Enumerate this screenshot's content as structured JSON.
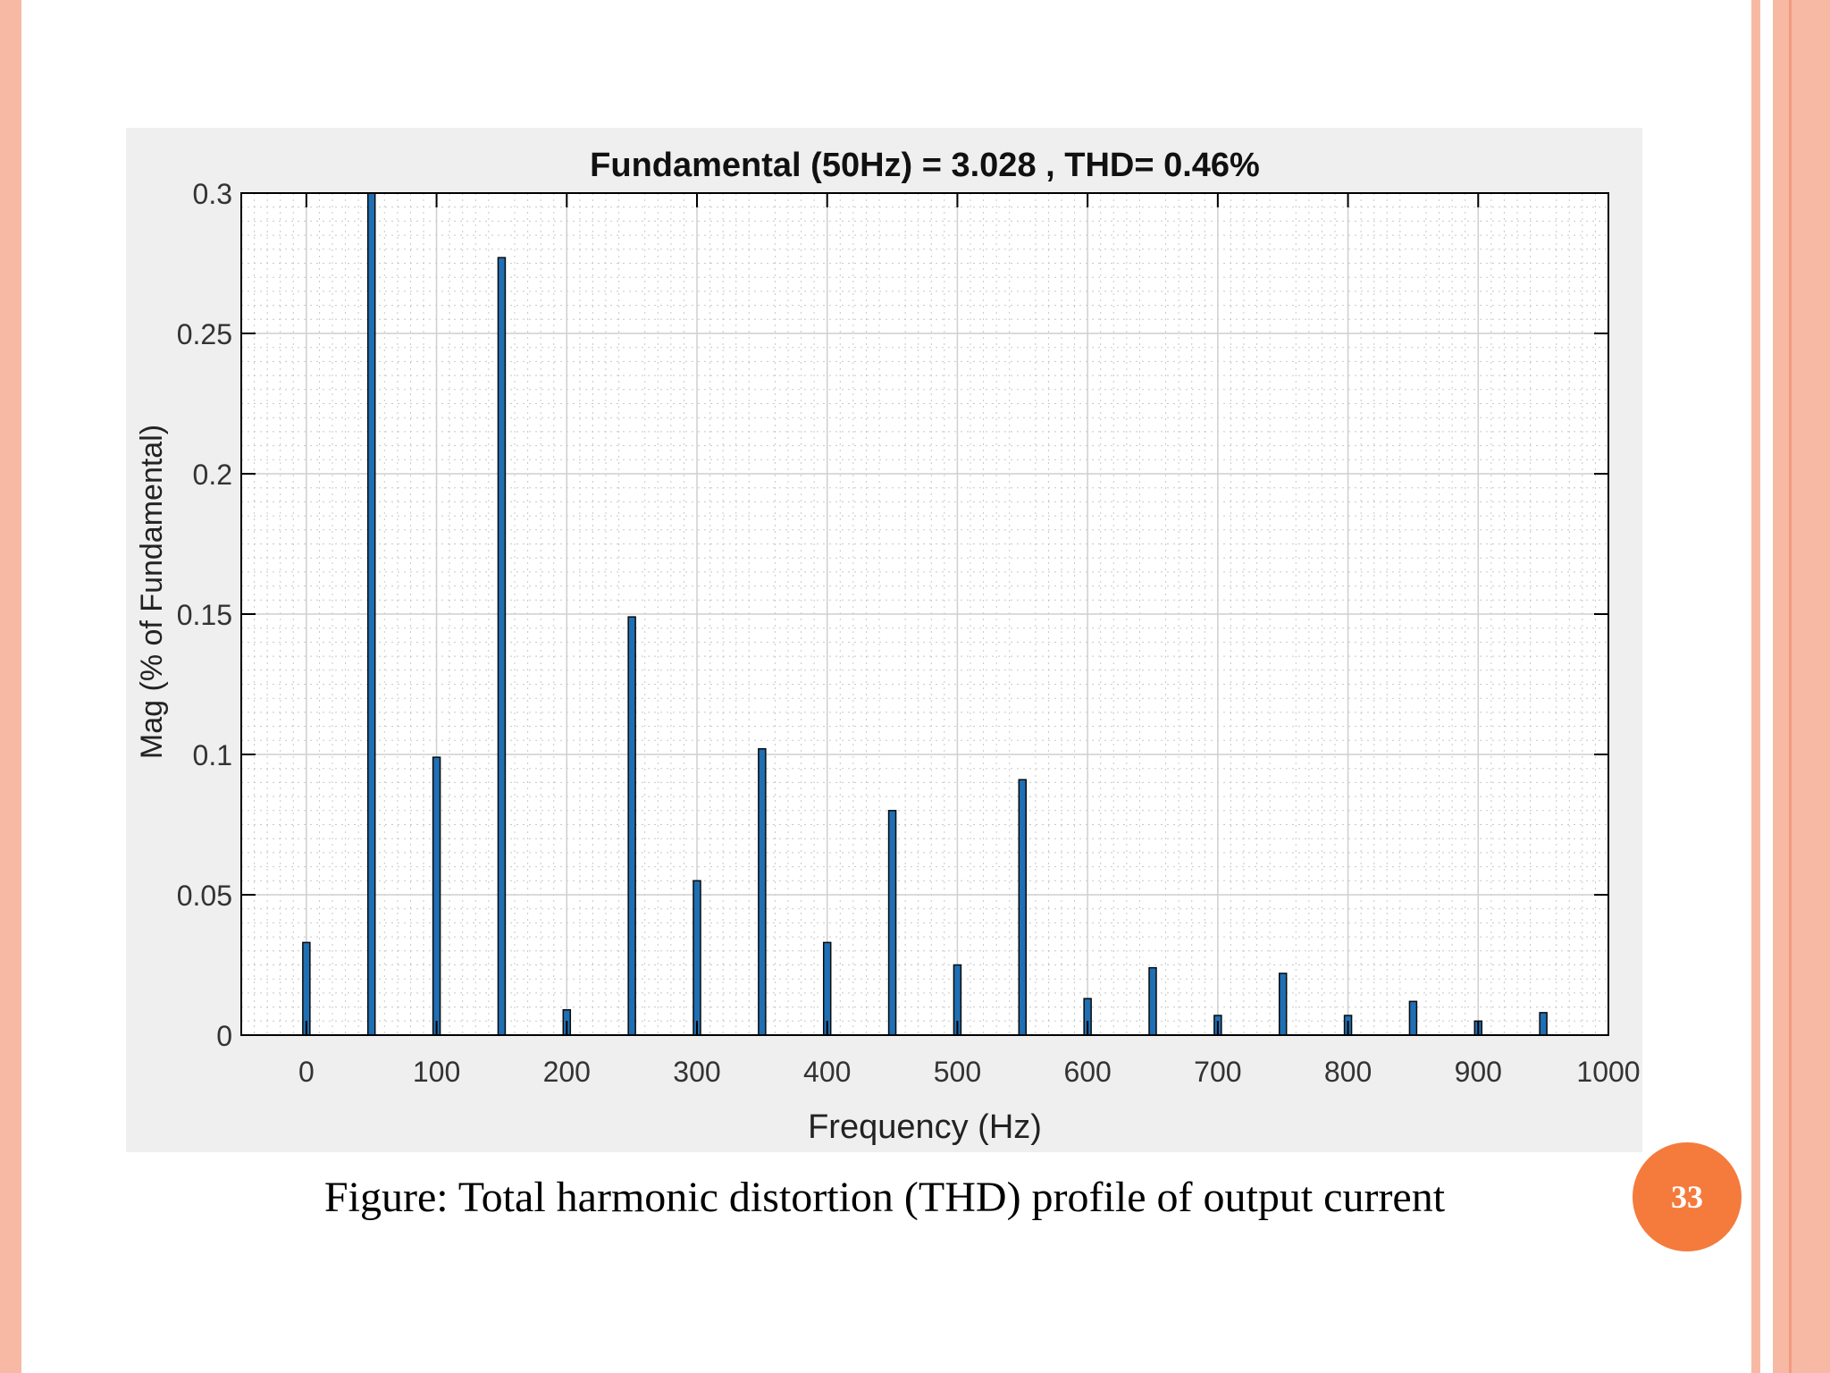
{
  "caption": "Figure: Total harmonic distortion (THD) profile of output current",
  "page_number": "33",
  "colors": {
    "bar": "#1f6fb4",
    "accent": "#f47b3c",
    "border": "#f7b9a3"
  },
  "chart_data": {
    "type": "bar",
    "title": "Fundamental (50Hz) = 3.028 , THD= 0.46%",
    "xlabel": "Frequency (Hz)",
    "ylabel": "Mag (% of Fundamental)",
    "xlim": [
      -50,
      1000
    ],
    "ylim": [
      0,
      0.3
    ],
    "xticks": [
      0,
      100,
      200,
      300,
      400,
      500,
      600,
      700,
      800,
      900,
      1000
    ],
    "yticks": [
      0,
      0.05,
      0.1,
      0.15,
      0.2,
      0.25,
      0.3
    ],
    "ytick_labels": [
      "0",
      "0.05",
      "0.1",
      "0.15",
      "0.2",
      "0.25",
      "0.3"
    ],
    "grid": true,
    "minor_grid": true,
    "x": [
      0,
      50,
      100,
      150,
      200,
      250,
      300,
      350,
      400,
      450,
      500,
      550,
      600,
      650,
      700,
      750,
      800,
      850,
      900,
      950
    ],
    "values": [
      0.033,
      0.31,
      0.099,
      0.277,
      0.009,
      0.149,
      0.055,
      0.102,
      0.033,
      0.08,
      0.025,
      0.091,
      0.013,
      0.024,
      0.007,
      0.022,
      0.007,
      0.012,
      0.005,
      0.008
    ],
    "note": "50 Hz bar is clipped at top of axes"
  }
}
